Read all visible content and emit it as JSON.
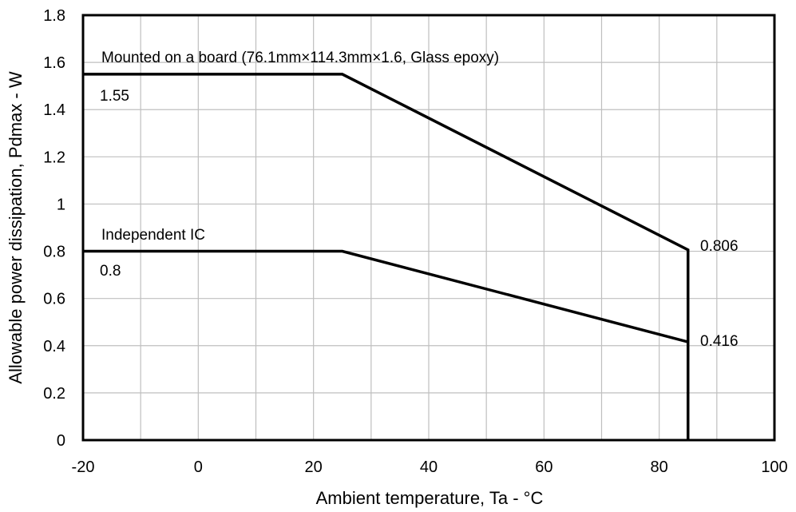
{
  "chart_data": {
    "type": "line",
    "xlabel": "Ambient temperature, Ta - °C",
    "ylabel": "Allowable power dissipation, Pdmax - W",
    "xlim": [
      -20,
      100
    ],
    "ylim": [
      0,
      1.8
    ],
    "x_ticks": [
      "-20",
      "0",
      "20",
      "40",
      "60",
      "80",
      "100"
    ],
    "y_ticks": [
      "0",
      "0.2",
      "0.4",
      "0.6",
      "0.8",
      "1",
      "1.2",
      "1.4",
      "1.6",
      "1.8"
    ],
    "grid": true,
    "series": [
      {
        "name": "Mounted on a board (76.1mm×114.3mm×1.6, Glass epoxy)",
        "x": [
          -20,
          25,
          85,
          85
        ],
        "y": [
          1.55,
          1.55,
          0.806,
          0
        ]
      },
      {
        "name": "Independent IC",
        "x": [
          -20,
          25,
          85,
          85
        ],
        "y": [
          0.8,
          0.8,
          0.416,
          0
        ]
      }
    ],
    "annotations": [
      {
        "text": "1.55",
        "x": -20,
        "y": 1.55
      },
      {
        "text": "0.8",
        "x": -20,
        "y": 0.8
      },
      {
        "text": "0.806",
        "x": 85,
        "y": 0.806
      },
      {
        "text": "0.416",
        "x": 85,
        "y": 0.416
      }
    ],
    "colors": {
      "line": "#000000",
      "grid": "#bfbfbf",
      "frame": "#000000"
    }
  }
}
